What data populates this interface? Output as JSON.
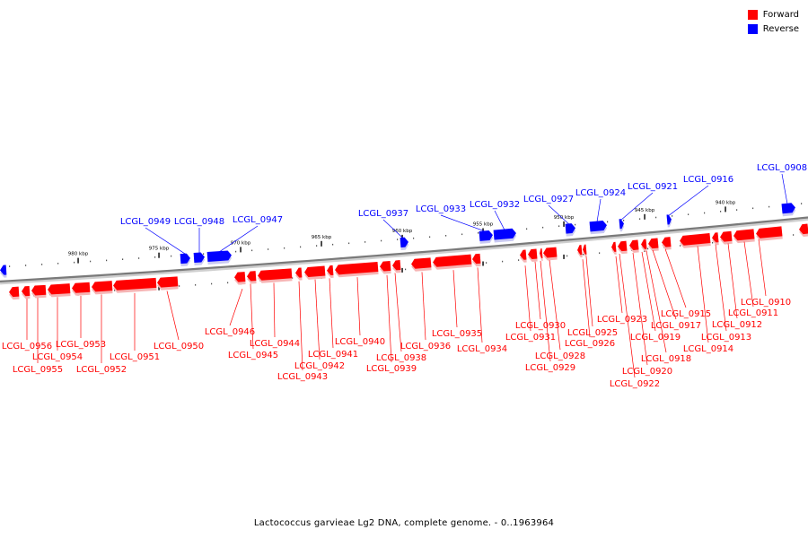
{
  "legend": {
    "forward_label": "Forward",
    "reverse_label": "Reverse",
    "forward_color": "#ff0000",
    "reverse_color": "#0000ff"
  },
  "caption": "Lactococcus garvieae Lg2 DNA, complete genome. - 0..1963964",
  "scale": {
    "ticks": [
      "980 kbp",
      "975 kbp",
      "970 kbp",
      "965 kbp",
      "960 kbp",
      "955 kbp",
      "950 kbp",
      "945 kbp",
      "940 kbp"
    ]
  },
  "genes": {
    "reverse": [
      "LCGL_0949",
      "LCGL_0948",
      "LCGL_0947",
      "LCGL_0937",
      "LCGL_0933",
      "LCGL_0932",
      "LCGL_0927",
      "LCGL_0924",
      "LCGL_0921",
      "LCGL_0916",
      "LCGL_0908"
    ],
    "forward": [
      "LCGL_0956",
      "LCGL_0955",
      "LCGL_0954",
      "LCGL_0953",
      "LCGL_0952",
      "LCGL_0951",
      "LCGL_0950",
      "LCGL_0946",
      "LCGL_0945",
      "LCGL_0944",
      "LCGL_0943",
      "LCGL_0942",
      "LCGL_0941",
      "LCGL_0940",
      "LCGL_0939",
      "LCGL_0938",
      "LCGL_0936",
      "LCGL_0935",
      "LCGL_0934",
      "LCGL_0931",
      "LCGL_0930",
      "LCGL_0929",
      "LCGL_0928",
      "LCGL_0926",
      "LCGL_0925",
      "LCGL_0923",
      "LCGL_0922",
      "LCGL_0920",
      "LCGL_0919",
      "LCGL_0918",
      "LCGL_0917",
      "LCGL_0915",
      "LCGL_0914",
      "LCGL_0913",
      "LCGL_0912",
      "LCGL_0911",
      "LCGL_0910"
    ]
  }
}
